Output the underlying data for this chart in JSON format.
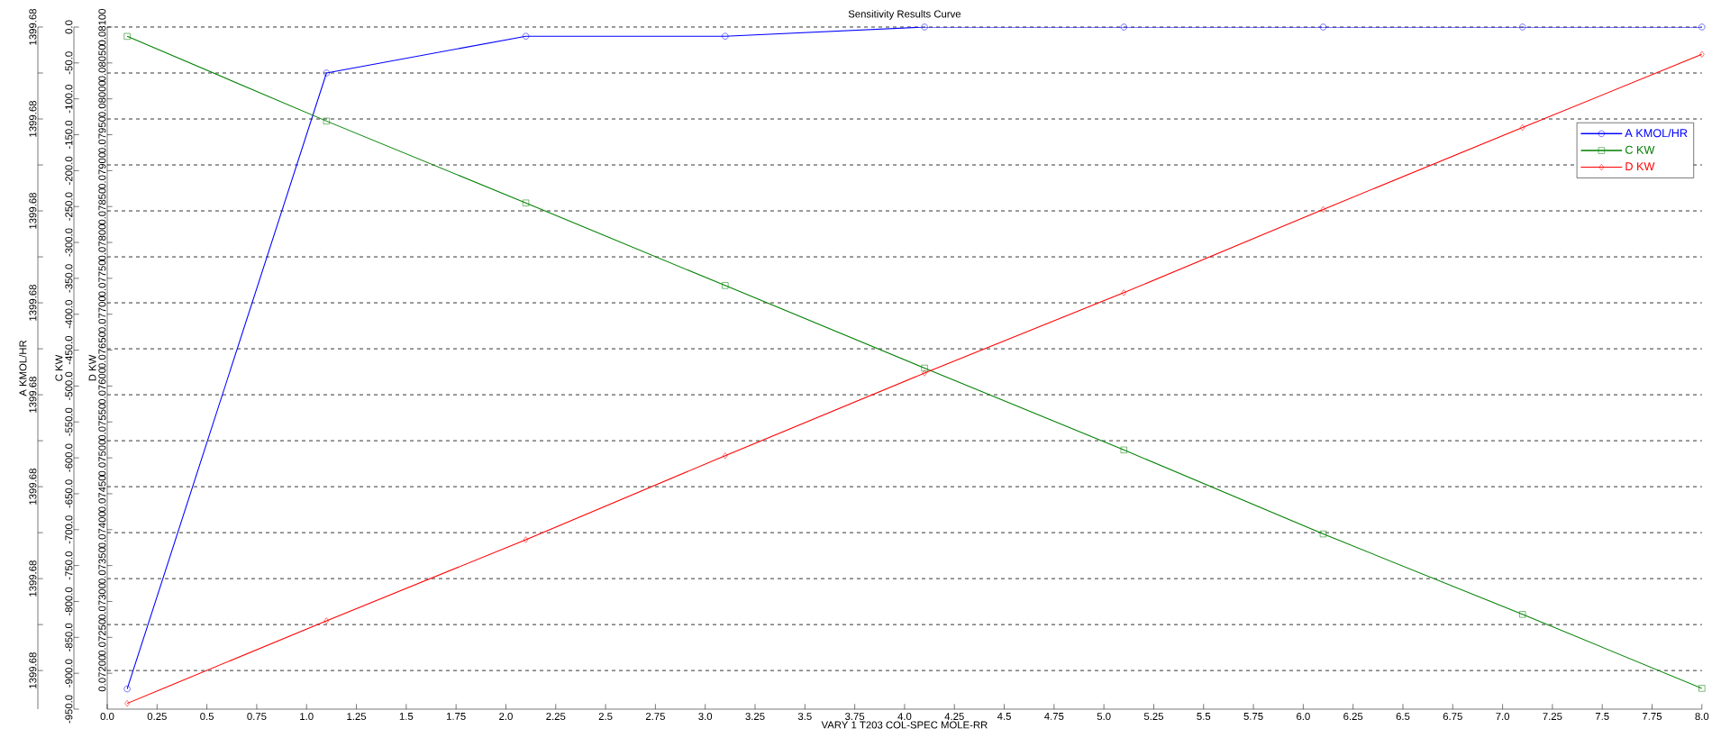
{
  "chart_data": {
    "type": "line",
    "title": "Sensitivity Results Curve",
    "xlabel": "VARY 1 T203 COL-SPEC MOLE-RR",
    "ylabel": "A KMOL/HR",
    "y2label": "C KW",
    "y3label": "D KW",
    "x": [
      0.1,
      1.1,
      2.1,
      3.1,
      4.1,
      5.1,
      6.1,
      7.1,
      8.0
    ],
    "series": [
      {
        "name": "A KMOL/HR",
        "color": "#0000ff",
        "marker": "circle",
        "values": [
          1399.67928,
          1399.67995,
          1399.67999,
          1399.67999,
          1399.68,
          1399.68,
          1399.68,
          1399.68,
          1399.68
        ]
      },
      {
        "name": "C KW",
        "color": "#008000",
        "marker": "square",
        "axis": "y2",
        "values": [
          -13,
          -131,
          -245,
          -360,
          -475,
          -589,
          -706,
          -818,
          -921
        ]
      },
      {
        "name": "D KW",
        "color": "#ff0000",
        "marker": "diamond",
        "axis": "y3",
        "values": [
          0.07158,
          0.07273,
          0.07386,
          0.07503,
          0.07618,
          0.0773,
          0.07846,
          0.0796,
          0.08062
        ]
      }
    ],
    "xlim": [
      0,
      8.0
    ],
    "xticks": [
      {
        "value": 0,
        "label": "0.0"
      },
      0.25,
      {
        "value": 0.5,
        "label": "0.5"
      },
      0.75,
      {
        "value": 1,
        "label": "1.0"
      },
      1.25,
      {
        "value": 1.5,
        "label": "1.5"
      },
      1.75,
      {
        "value": 2,
        "label": "2.0"
      },
      2.25,
      {
        "value": 2.5,
        "label": "2.5"
      },
      2.75,
      {
        "value": 3,
        "label": "3.0"
      },
      3.25,
      {
        "value": 3.5,
        "label": "3.5"
      },
      3.75,
      {
        "value": 4,
        "label": "4.0"
      },
      4.25,
      {
        "value": 4.5,
        "label": "4.5"
      },
      4.75,
      {
        "value": 5,
        "label": "5.0"
      },
      5.25,
      {
        "value": 5.5,
        "label": "5.5"
      },
      5.75,
      {
        "value": 6,
        "label": "6.0"
      },
      6.25,
      {
        "value": 6.5,
        "label": "6.5"
      },
      6.75,
      {
        "value": 7,
        "label": "7.0"
      },
      7.25,
      {
        "value": 7.5,
        "label": "7.5"
      },
      7.75,
      {
        "value": 8,
        "label": "8.0"
      }
    ],
    "ylim": [
      1399.679258,
      1399.68
    ],
    "yticks": [
      {
        "value": 1399.68,
        "label": "1399.68"
      },
      {
        "value": 1399.67995,
        "label": null
      },
      {
        "value": 1399.6799,
        "label": "1399.68"
      },
      {
        "value": 1399.67985,
        "label": null
      },
      {
        "value": 1399.6798,
        "label": "1399.68"
      },
      {
        "value": 1399.67975,
        "label": null
      },
      {
        "value": 1399.6797,
        "label": "1399.68"
      },
      {
        "value": 1399.67965,
        "label": null
      },
      {
        "value": 1399.6796,
        "label": "1399.68"
      },
      {
        "value": 1399.67955,
        "label": null
      },
      {
        "value": 1399.6795,
        "label": "1399.68"
      },
      {
        "value": 1399.67945,
        "label": null
      },
      {
        "value": 1399.6794,
        "label": "1399.68"
      },
      {
        "value": 1399.67935,
        "label": null
      },
      {
        "value": 1399.6793,
        "label": "1399.68"
      }
    ],
    "y2lim": [
      -950,
      0
    ],
    "y2ticks": [
      {
        "value": 0,
        "label": "0.0"
      },
      {
        "value": -50,
        "label": "-50.0"
      },
      {
        "value": -100,
        "label": "-100.0"
      },
      {
        "value": -150,
        "label": "-150.0"
      },
      {
        "value": -200,
        "label": "-200.0"
      },
      {
        "value": -250,
        "label": "-250.0"
      },
      {
        "value": -300,
        "label": "-300.0"
      },
      {
        "value": -350,
        "label": "-350.0"
      },
      {
        "value": -400,
        "label": "-400.0"
      },
      {
        "value": -450,
        "label": "-450.0"
      },
      {
        "value": -500,
        "label": "-500.0"
      },
      {
        "value": -550,
        "label": "-550.0"
      },
      {
        "value": -600,
        "label": "-600.0"
      },
      {
        "value": -650,
        "label": "-650.0"
      },
      {
        "value": -700,
        "label": "-700.0"
      },
      {
        "value": -750,
        "label": "-750.0"
      },
      {
        "value": -800,
        "label": "-800.0"
      },
      {
        "value": -850,
        "label": "-850.0"
      },
      {
        "value": -900,
        "label": "-900.0"
      },
      {
        "value": -950,
        "label": "-950.0"
      }
    ],
    "y3lim": [
      0.0715,
      0.081
    ],
    "y3ticks": [
      {
        "value": 0.081,
        "label": "0.08100"
      },
      {
        "value": 0.0805,
        "label": "0.08050"
      },
      {
        "value": 0.08,
        "label": "0.08000"
      },
      {
        "value": 0.0795,
        "label": "0.07950"
      },
      {
        "value": 0.079,
        "label": "0.07900"
      },
      {
        "value": 0.0785,
        "label": "0.07850"
      },
      {
        "value": 0.078,
        "label": "0.07800"
      },
      {
        "value": 0.0775,
        "label": "0.07750"
      },
      {
        "value": 0.077,
        "label": "0.07700"
      },
      {
        "value": 0.0765,
        "label": "0.07650"
      },
      {
        "value": 0.076,
        "label": "0.07600"
      },
      {
        "value": 0.0755,
        "label": "0.07550"
      },
      {
        "value": 0.075,
        "label": "0.07500"
      },
      {
        "value": 0.0745,
        "label": "0.07450"
      },
      {
        "value": 0.074,
        "label": "0.07400"
      },
      {
        "value": 0.0735,
        "label": "0.07350"
      },
      {
        "value": 0.073,
        "label": "0.07300"
      },
      {
        "value": 0.0725,
        "label": "0.07250"
      },
      {
        "value": 0.072,
        "label": "0.07200"
      }
    ],
    "grid": "y",
    "legend": "top right",
    "line_style": "solid"
  }
}
